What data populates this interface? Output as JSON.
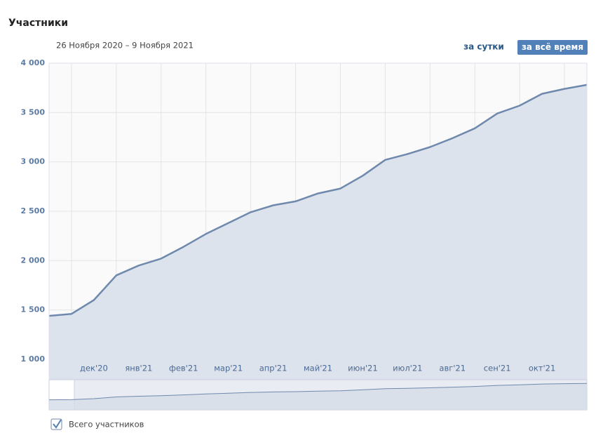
{
  "header": {
    "title": "Участники"
  },
  "controls": {
    "range": "26 Ноября 2020 – 9 Ноября 2021",
    "day_button": "за сутки",
    "all_button": "за всё время"
  },
  "chart_data": {
    "type": "area",
    "categories": [
      null,
      null,
      "дек'20",
      null,
      "янв'21",
      null,
      "фев'21",
      null,
      "мар'21",
      null,
      "апр'21",
      null,
      "май'21",
      null,
      "июн'21",
      null,
      "июл'21",
      null,
      "авг'21",
      null,
      "сен'21",
      null,
      "окт'21",
      null,
      null
    ],
    "series": [
      {
        "name": "Всего участников",
        "color": "#6f89ad",
        "values": [
          1440,
          1460,
          1600,
          1850,
          1950,
          2020,
          2140,
          2270,
          2380,
          2490,
          2560,
          2600,
          2680,
          2730,
          2860,
          3020,
          3080,
          3150,
          3240,
          3340,
          3490,
          3570,
          3690,
          3740,
          3780
        ]
      }
    ],
    "ylim": [
      800,
      4000
    ],
    "yticks": [
      {
        "value": 1000,
        "label": "1 000"
      },
      {
        "value": 1500,
        "label": "1 500"
      },
      {
        "value": 2000,
        "label": "2 000"
      },
      {
        "value": 2500,
        "label": "2 500"
      },
      {
        "value": 3000,
        "label": "3 000"
      },
      {
        "value": 3500,
        "label": "3 500"
      },
      {
        "value": 4000,
        "label": "4 000"
      }
    ],
    "grid": true
  }
}
